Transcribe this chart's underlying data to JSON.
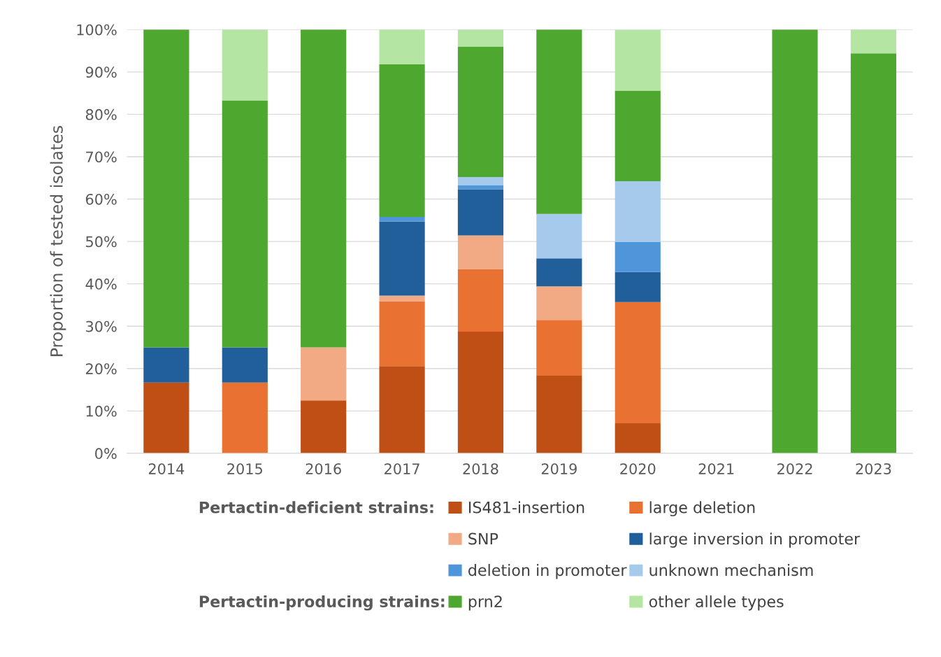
{
  "chart_data": {
    "type": "bar",
    "stacked": true,
    "ylabel": "Proportion of tested isolates",
    "categories": [
      "2014",
      "2015",
      "2016",
      "2017",
      "2018",
      "2019",
      "2020",
      "2021",
      "2022",
      "2023"
    ],
    "series": [
      {
        "name": "IS481-insertion",
        "color": "#c04f15",
        "values": [
          16.7,
          0,
          12.5,
          20.6,
          28.7,
          18.3,
          7.1,
          null,
          0,
          0
        ]
      },
      {
        "name": "large deletion",
        "color": "#e97132",
        "values": [
          0,
          16.7,
          0,
          15.3,
          14.8,
          13.2,
          28.6,
          null,
          0,
          0
        ]
      },
      {
        "name": "SNP",
        "color": "#f2aa84",
        "values": [
          0,
          0,
          12.5,
          1.3,
          7.9,
          7.9,
          0,
          null,
          0,
          0
        ]
      },
      {
        "name": "large inversion in promoter",
        "color": "#215f9a",
        "values": [
          8.3,
          8.3,
          0,
          17.5,
          10.9,
          6.6,
          7.1,
          null,
          0,
          0
        ]
      },
      {
        "name": "deletion in promoter",
        "color": "#4e95d9",
        "values": [
          0,
          0,
          0,
          1.1,
          1.0,
          0,
          7.1,
          null,
          0,
          0
        ]
      },
      {
        "name": "unknown mechanism",
        "color": "#a6caec",
        "values": [
          0,
          0,
          0,
          0,
          1.9,
          10.5,
          14.3,
          null,
          0,
          0
        ]
      },
      {
        "name": "prn2",
        "color": "#4ea72e",
        "values": [
          75,
          58.3,
          75,
          36,
          30.8,
          43.5,
          21.4,
          null,
          100,
          94.4
        ]
      },
      {
        "name": "other allele types",
        "color": "#b4e5a2",
        "values": [
          0,
          16.7,
          0,
          8.2,
          4.0,
          0,
          14.3,
          null,
          0,
          5.6
        ]
      }
    ],
    "ylim": [
      0,
      100
    ],
    "yticks": [
      {
        "value": 0,
        "label": "0%"
      },
      {
        "value": 10,
        "label": "10%"
      },
      {
        "value": 20,
        "label": "20%"
      },
      {
        "value": 30,
        "label": "30%"
      },
      {
        "value": 40,
        "label": "40%"
      },
      {
        "value": 50,
        "label": "50%"
      },
      {
        "value": 60,
        "label": "60%"
      },
      {
        "value": 70,
        "label": "70%"
      },
      {
        "value": 80,
        "label": "80%"
      },
      {
        "value": 90,
        "label": "90%"
      },
      {
        "value": 100,
        "label": "100%"
      }
    ],
    "grid": "y",
    "legend": "bottom",
    "annotations": [
      "Pertactin-deficient strains:",
      "Pertactin-producing strains:"
    ]
  }
}
